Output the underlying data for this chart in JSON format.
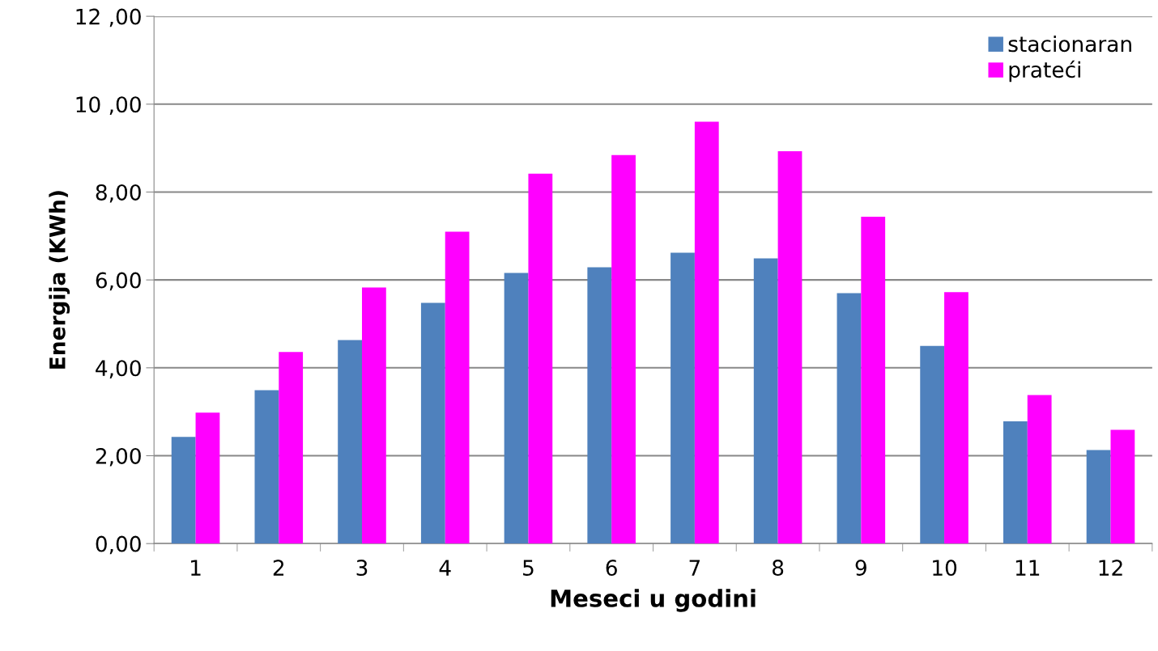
{
  "chart_data": {
    "type": "bar",
    "xlabel": "Meseci u godini",
    "ylabel": "Energija (KWh)",
    "categories": [
      "1",
      "2",
      "3",
      "4",
      "5",
      "6",
      "7",
      "8",
      "9",
      "10",
      "11",
      "12"
    ],
    "series": [
      {
        "name": "stacionaran",
        "color": "#4f81bd",
        "values": [
          2.43,
          3.49,
          4.63,
          5.48,
          6.16,
          6.29,
          6.62,
          6.49,
          5.7,
          4.5,
          2.78,
          2.13
        ]
      },
      {
        "name": "prateći",
        "color": "#ff00ff",
        "values": [
          2.98,
          4.36,
          5.83,
          7.1,
          8.42,
          8.84,
          9.6,
          8.93,
          7.44,
          5.72,
          3.38,
          2.59
        ]
      }
    ],
    "ylim": [
      0,
      12
    ],
    "yticks": [
      {
        "value": 0,
        "label": "0,00"
      },
      {
        "value": 2,
        "label": "2,00"
      },
      {
        "value": 4,
        "label": "4,00"
      },
      {
        "value": 6,
        "label": "6,00"
      },
      {
        "value": 8,
        "label": "8,00"
      },
      {
        "value": 10,
        "label": "10 ,00"
      },
      {
        "value": 12,
        "label": "12 ,00"
      }
    ],
    "grid": "y",
    "legend": "top right"
  }
}
